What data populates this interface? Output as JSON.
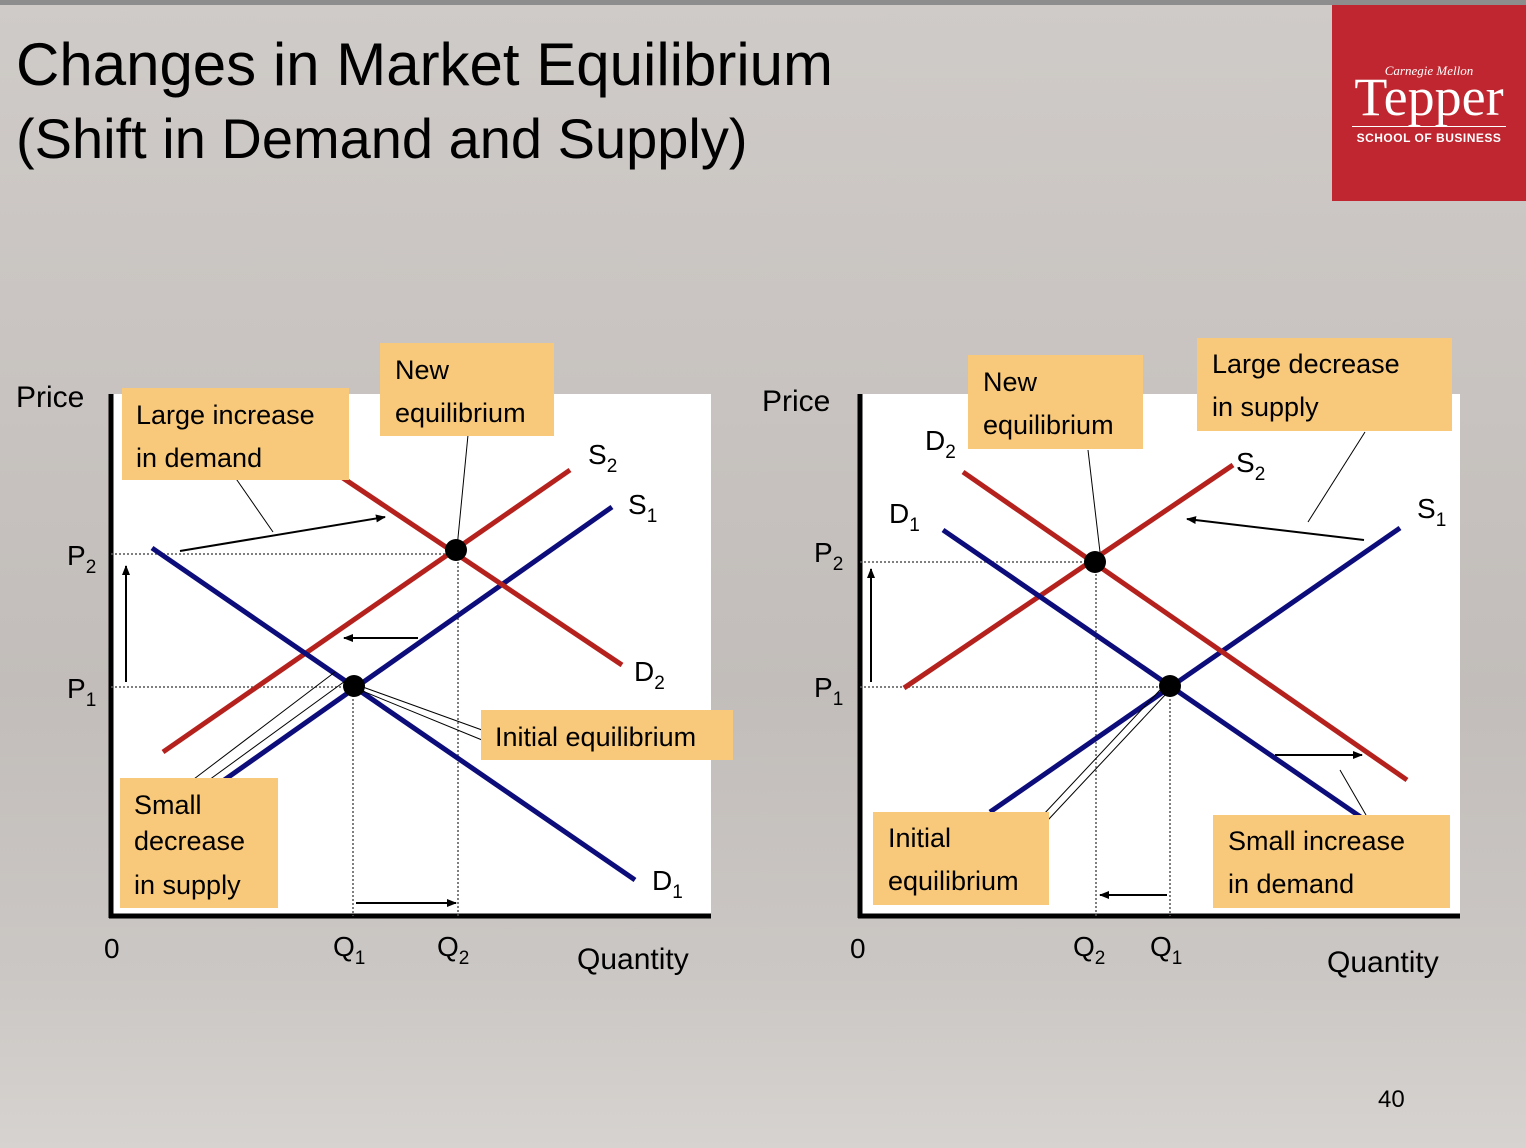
{
  "title": "Changes in Market Equilibrium",
  "subtitle": "(Shift in Demand and Supply)",
  "logo": {
    "institution": "Carnegie Mellon",
    "name": "Tepper",
    "school": "SCHOOL OF BUSINESS"
  },
  "left_graph": {
    "y_axis_label": "Price",
    "x_axis_label": "Quantity",
    "origin": "0",
    "price_labels": [
      "P2",
      "P1"
    ],
    "quantity_labels": [
      "Q1",
      "Q2"
    ],
    "curves": [
      "S2",
      "S1",
      "D2",
      "D1"
    ],
    "callouts": {
      "demand": [
        "Large increase",
        "in demand"
      ],
      "new_eq": [
        "New",
        "equilibrium"
      ],
      "initial_eq": "Initial equilibrium",
      "supply": [
        "Small",
        "decrease",
        "in supply"
      ]
    }
  },
  "right_graph": {
    "y_axis_label": "Price",
    "x_axis_label": "Quantity",
    "origin": "0",
    "price_labels": [
      "P2",
      "P1"
    ],
    "quantity_labels": [
      "Q2",
      "Q1"
    ],
    "curves": [
      "D2",
      "D1",
      "S2",
      "S1"
    ],
    "callouts": {
      "new_eq": [
        "New",
        "equilibrium"
      ],
      "supply": [
        "Large decrease",
        "in supply"
      ],
      "initial_eq": [
        "Initial",
        "equilibrium"
      ],
      "demand": [
        "Small increase",
        "in demand"
      ]
    }
  },
  "page_number": "40",
  "colors": {
    "supply_demand_original": "#0c0c7a",
    "shifted_curves": "#b5221e",
    "callout_fill": "#f8c97a",
    "logo_bg": "#c0262f"
  }
}
